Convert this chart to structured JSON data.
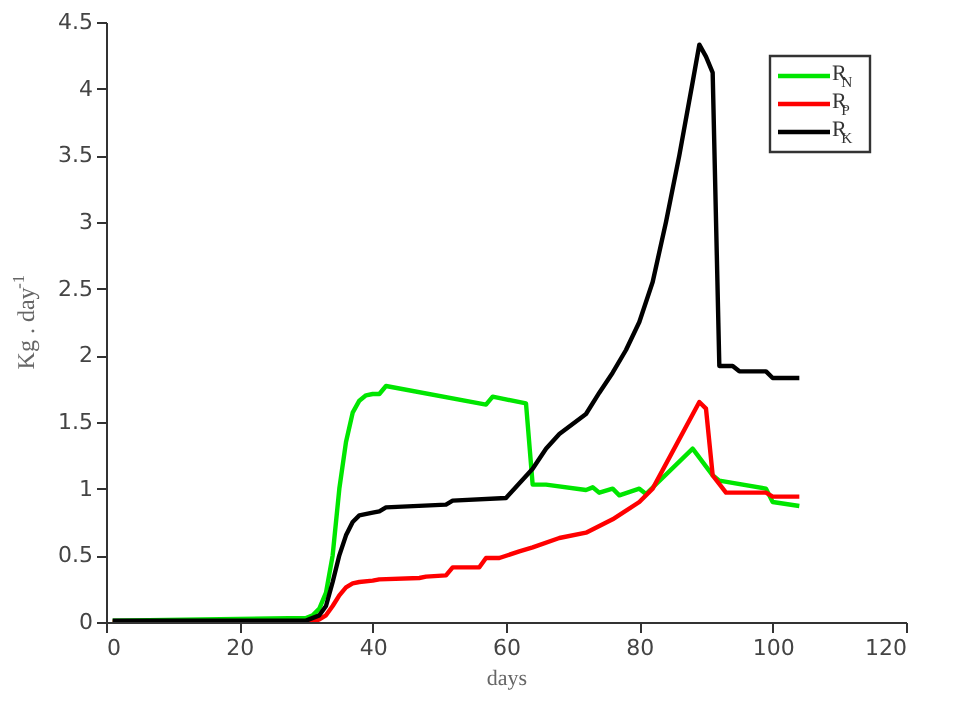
{
  "chart_data": {
    "type": "line",
    "xlabel": "days",
    "ylabel": "Kg . day$^{-1}$",
    "xlim": [
      0,
      120
    ],
    "xticks": [
      0,
      20,
      40,
      60,
      80,
      100,
      120
    ],
    "ylim": [
      0,
      4.5
    ],
    "yticks": [
      0,
      0.5,
      1,
      1.5,
      2,
      2.5,
      3,
      3.5,
      4,
      4.5
    ],
    "grid": false,
    "legend": "top right",
    "line_style": "solid",
    "marker": "none",
    "series": [
      {
        "name": "R$_{N}$",
        "color": "#00e600",
        "x": [
          1,
          30,
          31,
          32,
          33,
          34,
          35,
          36,
          37,
          38,
          39,
          40,
          41,
          42,
          57,
          58,
          63,
          64,
          66,
          72,
          73,
          74,
          76,
          77,
          80,
          81,
          88,
          91,
          92,
          99,
          100,
          104
        ],
        "values": [
          0.01,
          0.03,
          0.05,
          0.1,
          0.22,
          0.5,
          1.0,
          1.35,
          1.57,
          1.66,
          1.7,
          1.71,
          1.71,
          1.77,
          1.63,
          1.69,
          1.64,
          1.03,
          1.03,
          0.99,
          1.01,
          0.97,
          1.0,
          0.95,
          1.0,
          0.96,
          1.3,
          1.1,
          1.06,
          1.0,
          0.9,
          0.87
        ]
      },
      {
        "name": "R$_{P}$",
        "color": "#ff0000",
        "x": [
          1,
          31,
          32,
          33,
          34,
          35,
          36,
          37,
          38,
          40,
          41,
          47,
          48,
          51,
          52,
          56,
          57,
          59,
          62,
          64,
          68,
          72,
          76,
          80,
          82,
          89,
          90,
          91,
          93,
          99,
          100,
          104
        ],
        "values": [
          0,
          0,
          0.02,
          0.05,
          0.12,
          0.2,
          0.26,
          0.29,
          0.3,
          0.31,
          0.32,
          0.33,
          0.34,
          0.35,
          0.41,
          0.41,
          0.48,
          0.48,
          0.53,
          0.56,
          0.63,
          0.67,
          0.77,
          0.9,
          1.0,
          1.65,
          1.6,
          1.1,
          0.97,
          0.97,
          0.94,
          0.94
        ]
      },
      {
        "name": "R$_{K}$",
        "color": "#000000",
        "x": [
          1,
          30,
          32,
          33,
          34,
          35,
          36,
          37,
          38,
          40,
          41,
          42,
          51,
          52,
          60,
          64,
          66,
          68,
          72,
          74,
          76,
          78,
          80,
          82,
          84,
          86,
          88,
          89,
          90,
          91,
          92,
          94,
          95,
          99,
          100,
          104
        ],
        "values": [
          0.01,
          0.01,
          0.05,
          0.12,
          0.3,
          0.5,
          0.65,
          0.75,
          0.8,
          0.82,
          0.83,
          0.86,
          0.88,
          0.91,
          0.93,
          1.15,
          1.3,
          1.41,
          1.56,
          1.72,
          1.87,
          2.04,
          2.25,
          2.55,
          3.0,
          3.5,
          4.05,
          4.33,
          4.24,
          4.12,
          1.92,
          1.92,
          1.88,
          1.88,
          1.83,
          1.83
        ]
      }
    ]
  }
}
